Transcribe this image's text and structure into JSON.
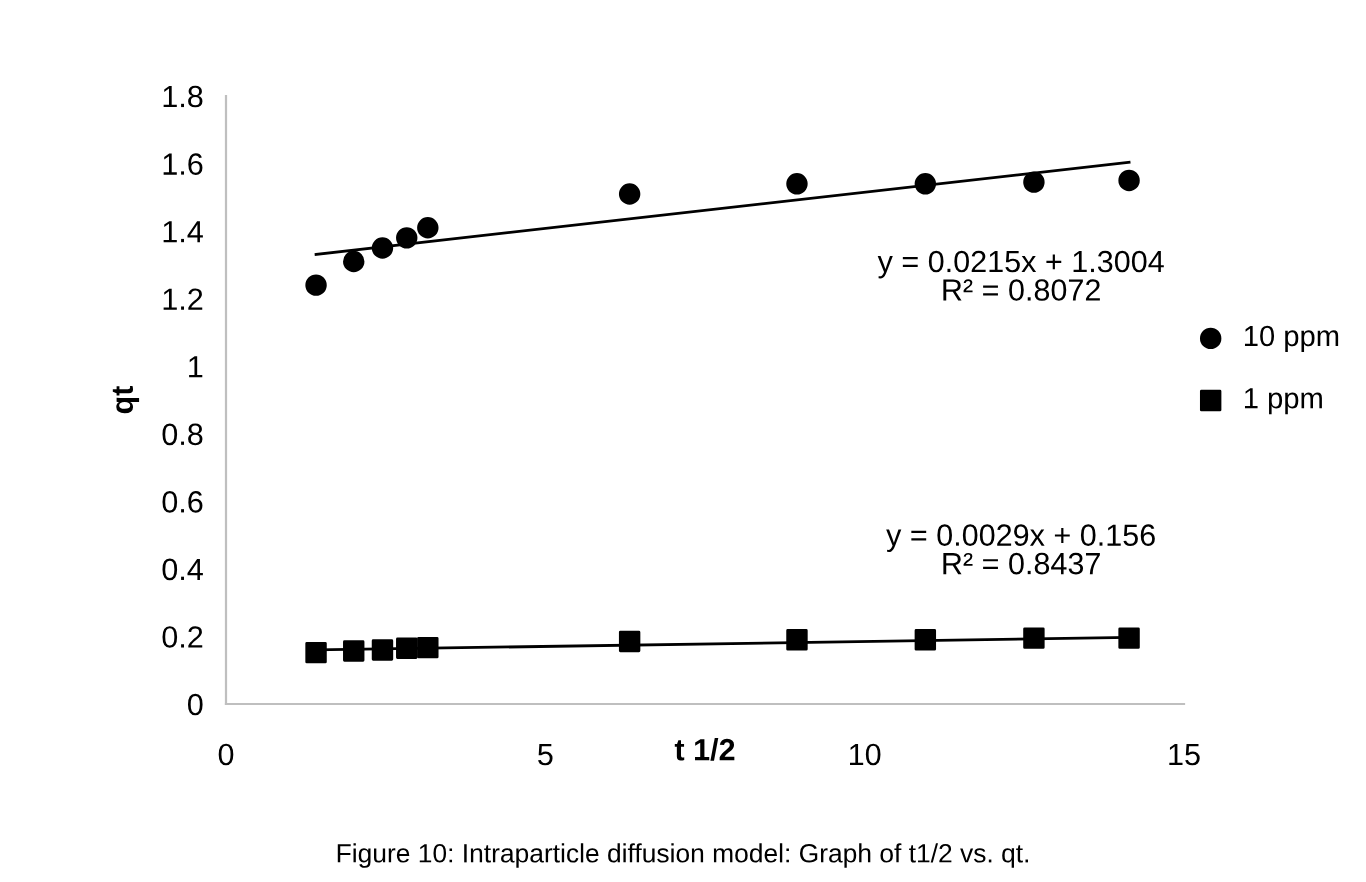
{
  "chart_data": {
    "type": "scatter",
    "xlabel": "t 1/2",
    "ylabel": "qt",
    "xlim": [
      0,
      15
    ],
    "ylim": [
      0,
      1.8
    ],
    "xticks": [
      0,
      5,
      10,
      15
    ],
    "yticks": [
      0,
      0.2,
      0.4,
      0.6,
      0.8,
      1,
      1.2,
      1.4,
      1.6,
      1.8
    ],
    "grid": false,
    "legend": "right",
    "series": [
      {
        "name": "10 ppm",
        "marker": "circle",
        "color": "#000000",
        "x": [
          1.41,
          2.0,
          2.45,
          2.83,
          3.16,
          6.32,
          8.94,
          10.95,
          12.65,
          14.14
        ],
        "values": [
          1.24,
          1.31,
          1.35,
          1.38,
          1.41,
          1.51,
          1.54,
          1.54,
          1.545,
          1.55
        ]
      },
      {
        "name": "1 ppm",
        "marker": "square",
        "color": "#000000",
        "x": [
          1.41,
          2.0,
          2.45,
          2.83,
          3.16,
          6.32,
          8.94,
          10.95,
          12.65,
          14.14
        ],
        "values": [
          0.152,
          0.157,
          0.16,
          0.165,
          0.167,
          0.185,
          0.19,
          0.19,
          0.195,
          0.195
        ]
      },
      {
        "type": "line",
        "color": "#000000",
        "x": [
          1.41,
          14.14
        ],
        "values": [
          1.331,
          1.604
        ]
      },
      {
        "type": "line",
        "color": "#000000",
        "x": [
          1.41,
          14.14
        ],
        "values": [
          0.16,
          0.197
        ]
      }
    ],
    "annotations": [
      "y = 0.0215x + 1.3004\nR² = 0.8072",
      "y = 0.0029x + 0.156\nR² = 0.8437",
      "Figure 10: Intraparticle diffusion model: Graph of t1/2 vs. qt."
    ]
  }
}
